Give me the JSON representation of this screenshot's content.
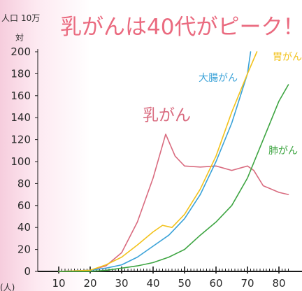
{
  "chart_data": {
    "type": "line",
    "title": "乳がんは40代がピーク！",
    "y_unit_top": "人口",
    "y_unit_num": "10万",
    "y_unit_suffix": "対",
    "x_unit": "(人)",
    "ylim": [
      0,
      200
    ],
    "xlim": [
      10,
      83
    ],
    "y_ticks": [
      "0",
      "20",
      "40",
      "60",
      "80",
      "100",
      "120",
      "140",
      "160",
      "180",
      "200"
    ],
    "x_ticks": [
      "10",
      "20",
      "30",
      "40",
      "50",
      "60",
      "70",
      "80"
    ],
    "grid": false,
    "series": [
      {
        "name": "乳がん",
        "color": "#d96b7f",
        "x": [
          10,
          20,
          25,
          30,
          35,
          40,
          44,
          47,
          50,
          55,
          60,
          65,
          70,
          72,
          75,
          80,
          83
        ],
        "y": [
          0,
          1,
          5,
          17,
          45,
          85,
          125,
          105,
          96,
          95,
          96,
          92,
          96,
          92,
          78,
          72,
          70
        ]
      },
      {
        "name": "大腸がん",
        "color": "#3aa2d8",
        "x": [
          10,
          20,
          25,
          30,
          35,
          40,
          45,
          50,
          55,
          60,
          65,
          70,
          71
        ],
        "y": [
          0,
          1,
          3,
          6,
          13,
          23,
          33,
          48,
          70,
          100,
          135,
          180,
          200
        ]
      },
      {
        "name": "胃がん",
        "color": "#f2c21c",
        "x": [
          10,
          20,
          25,
          30,
          35,
          40,
          43,
          46,
          50,
          55,
          60,
          65,
          70,
          73
        ],
        "y": [
          0,
          1,
          6,
          13,
          24,
          36,
          42,
          40,
          52,
          75,
          105,
          145,
          180,
          200
        ]
      },
      {
        "name": "肺がん",
        "color": "#3ea542",
        "x": [
          10,
          20,
          25,
          30,
          35,
          40,
          45,
          50,
          55,
          60,
          65,
          70,
          75,
          80,
          83
        ],
        "y": [
          0,
          0,
          1,
          3,
          5,
          8,
          13,
          20,
          33,
          45,
          60,
          85,
          120,
          155,
          170
        ]
      }
    ]
  }
}
